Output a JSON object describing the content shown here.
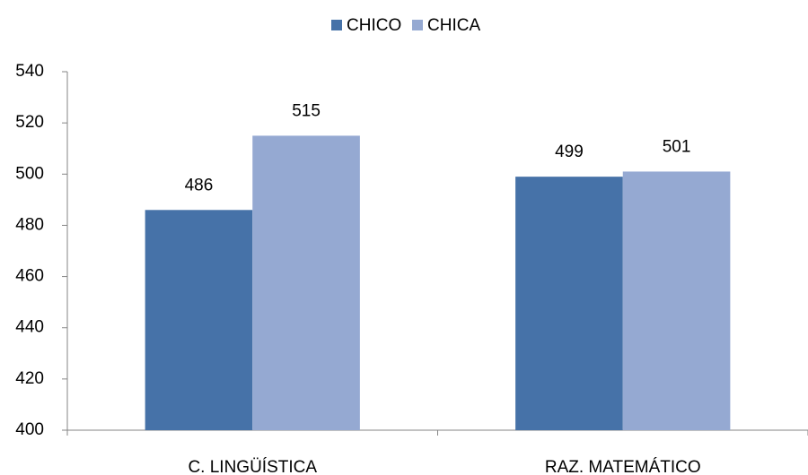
{
  "chart_data": {
    "type": "bar",
    "categories": [
      "C. LINGÜÍSTICA",
      "RAZ. MATEMÁTICO"
    ],
    "series": [
      {
        "name": "CHICO",
        "color": "#4672a8",
        "values": [
          486,
          499
        ]
      },
      {
        "name": "CHICA",
        "color": "#95a9d2",
        "values": [
          515,
          501
        ]
      }
    ],
    "ylim": [
      400,
      540
    ],
    "yticks": [
      400,
      420,
      440,
      460,
      480,
      500,
      520,
      540
    ],
    "grid": false,
    "legend": "top"
  }
}
